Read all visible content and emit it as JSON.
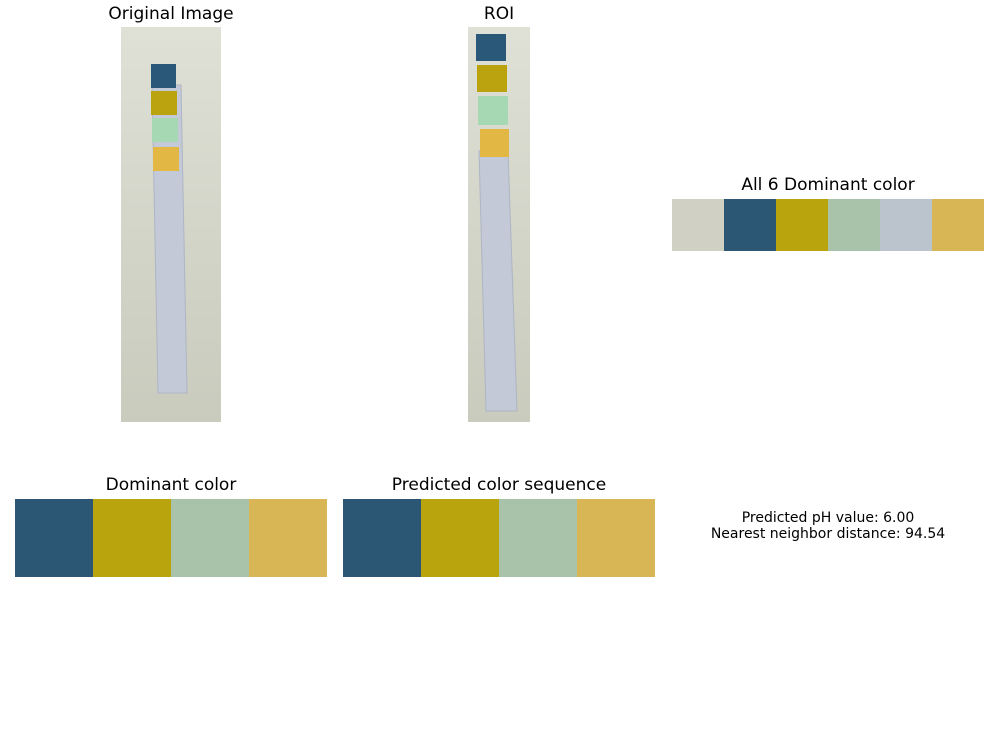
{
  "panels": {
    "original": {
      "title": "Original Image"
    },
    "roi": {
      "title": "ROI"
    },
    "all_colors": {
      "title": "All 6 Dominant color"
    },
    "dominant": {
      "title": "Dominant color"
    },
    "predicted_sequence": {
      "title": "Predicted color sequence"
    }
  },
  "result": {
    "ph_line": "Predicted pH value: 6.00",
    "distance_line": "Nearest neighbor distance: 94.54"
  },
  "strip_colors": {
    "background": "#dfe0d6",
    "background_shadow": "#c9cbbd",
    "strip": "#c3c9d6",
    "strip_edge": "#aeb5c4",
    "pads": [
      "#2a5879",
      "#bba30f",
      "#a6d8b4",
      "#e2b744"
    ]
  },
  "chart_data": [
    {
      "type": "table",
      "title": "All 6 Dominant color",
      "colors": [
        "#d0d0c4",
        "#2b5775",
        "#b9a40d",
        "#a8c3aa",
        "#bbc3cd",
        "#d9b655"
      ]
    },
    {
      "type": "table",
      "title": "Dominant color",
      "colors": [
        "#2b5775",
        "#b9a40d",
        "#a8c3aa",
        "#d9b655"
      ]
    },
    {
      "type": "table",
      "title": "Predicted color sequence",
      "colors": [
        "#2b5775",
        "#b9a40d",
        "#a8c3aa",
        "#d9b655"
      ]
    }
  ]
}
